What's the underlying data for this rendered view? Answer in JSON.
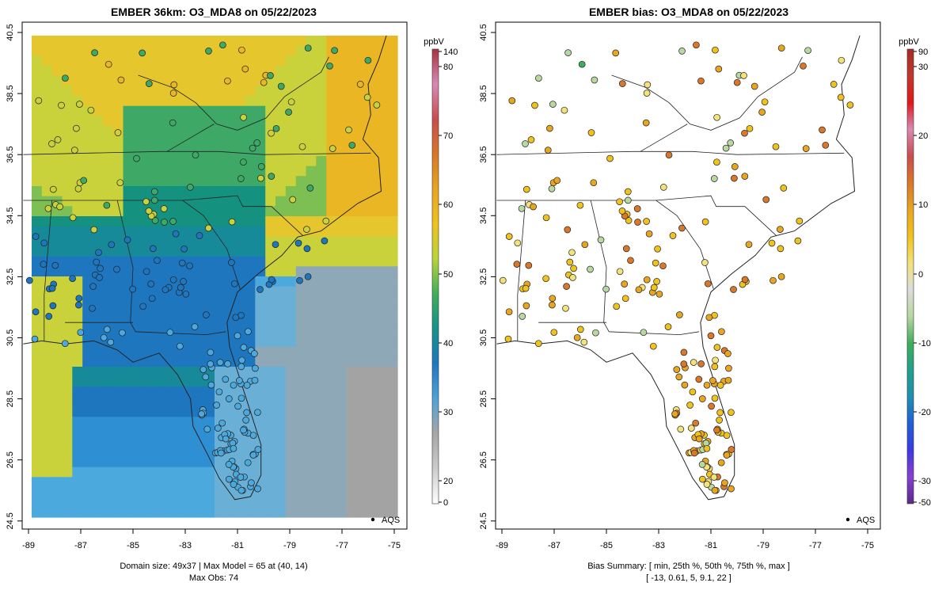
{
  "left_panel": {
    "title": "EMBER 36km: O3_MDA8 on 05/22/2023",
    "x_ticks": [
      "-89",
      "-87",
      "-85",
      "-83",
      "-81",
      "-79",
      "-77",
      "-75"
    ],
    "y_ticks": [
      "40.5",
      "38.5",
      "36.5",
      "34.5",
      "32.5",
      "30.5",
      "28.5",
      "26.5",
      "24.5"
    ],
    "footer_line1": "Domain size: 49x37 | Max Model = 65 at (40, 14)",
    "footer_line2": "Max Obs: 74",
    "legend_label": "AQS",
    "colorbar": {
      "unit": "ppbV",
      "labels": [
        "140",
        "80",
        "70",
        "60",
        "50",
        "40",
        "30",
        "20",
        "0"
      ],
      "colors": [
        "#ffffff",
        "#cccccc",
        "#a6a6a6",
        "#4fa3d9",
        "#1f77c0",
        "#16928a",
        "#3fae5a",
        "#b8d43a",
        "#f0c21e",
        "#e8a520",
        "#d9772a",
        "#c94d4d",
        "#d98ab5",
        "#a83240"
      ]
    }
  },
  "right_panel": {
    "title": "EMBER bias: O3_MDA8 on 05/22/2023",
    "x_ticks": [
      "-89",
      "-87",
      "-85",
      "-83",
      "-81",
      "-79",
      "-77",
      "-75"
    ],
    "y_ticks": [
      "40.5",
      "38.5",
      "36.5",
      "34.5",
      "32.5",
      "30.5",
      "28.5",
      "26.5",
      "24.5"
    ],
    "footer_line1": "Bias Summary: [ min, 25th %, 50th %, 75th %, max ]",
    "footer_line2": "[ -13,   0.61,   5,   9.1,   22 ]",
    "legend_label": "AQS",
    "colorbar": {
      "unit": "ppbV",
      "labels": [
        "90",
        "30",
        "20",
        "10",
        "0",
        "-10",
        "-20",
        "-30",
        "-50"
      ],
      "colors": [
        "#5b2a86",
        "#8a3fd1",
        "#3b3be0",
        "#1f5fd6",
        "#1f8fb0",
        "#22a08a",
        "#3fae5a",
        "#b8d8a0",
        "#dcdcdc",
        "#f3e27a",
        "#f0c21e",
        "#e8a520",
        "#d9772a",
        "#c94d4d",
        "#d98ab5",
        "#e01818",
        "#c0392b",
        "#a52a2a"
      ]
    }
  },
  "chart_data": [
    {
      "type": "heatmap",
      "title": "EMBER 36km: O3_MDA8 on 05/22/2023",
      "xlim": [
        -89.2,
        -74.8
      ],
      "ylim": [
        24.3,
        40.8
      ],
      "colorbar_range": [
        0,
        140
      ],
      "units": "ppbV",
      "domain_size": "49x37",
      "max_model": 65,
      "max_obs": 74
    },
    {
      "type": "scatter",
      "title": "EMBER bias: O3_MDA8 on 05/22/2023",
      "xlim": [
        -89.2,
        -74.8
      ],
      "ylim": [
        24.3,
        40.8
      ],
      "colorbar_range": [
        -50,
        90
      ],
      "units": "ppbV",
      "bias_summary": {
        "min": -13,
        "p25": 0.61,
        "p50": 5,
        "p75": 9.1,
        "max": 22
      }
    }
  ]
}
